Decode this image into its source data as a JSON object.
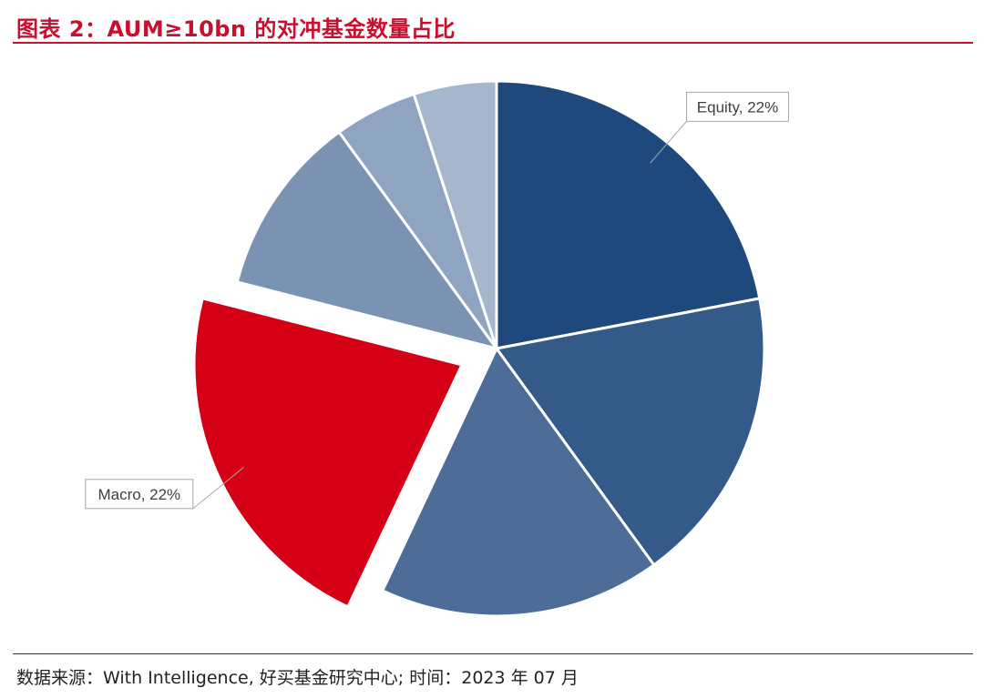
{
  "header": {
    "title": "图表 2：AUM≥10bn 的对冲基金数量占比"
  },
  "footer": {
    "source": "数据来源：With Intelligence, 好买基金研究中心; 时间：2023 年 07 月"
  },
  "colors": {
    "title": "#c8102e",
    "highlight": "#d50015",
    "blues": [
      "#1f497d",
      "#345a89",
      "#4d6c97",
      "#7a93b3",
      "#8fa4c0",
      "#a5b6cd"
    ]
  },
  "chart_data": {
    "type": "pie",
    "title": "",
    "exploded_slice": "Macro",
    "slices": [
      {
        "name": "Equity",
        "value": 22,
        "label": "Equity, 22%",
        "color": "#1f497d"
      },
      {
        "name": "",
        "value": 18,
        "label": "",
        "color": "#345a89"
      },
      {
        "name": "",
        "value": 17,
        "label": "",
        "color": "#4d6c97"
      },
      {
        "name": "Macro",
        "value": 22,
        "label": "Macro, 22%",
        "color": "#d50015"
      },
      {
        "name": "",
        "value": 11,
        "label": "",
        "color": "#7a93b3"
      },
      {
        "name": "",
        "value": 5,
        "label": "",
        "color": "#8fa4c0"
      },
      {
        "name": "",
        "value": 5,
        "label": "",
        "color": "#a5b6cd"
      }
    ]
  }
}
